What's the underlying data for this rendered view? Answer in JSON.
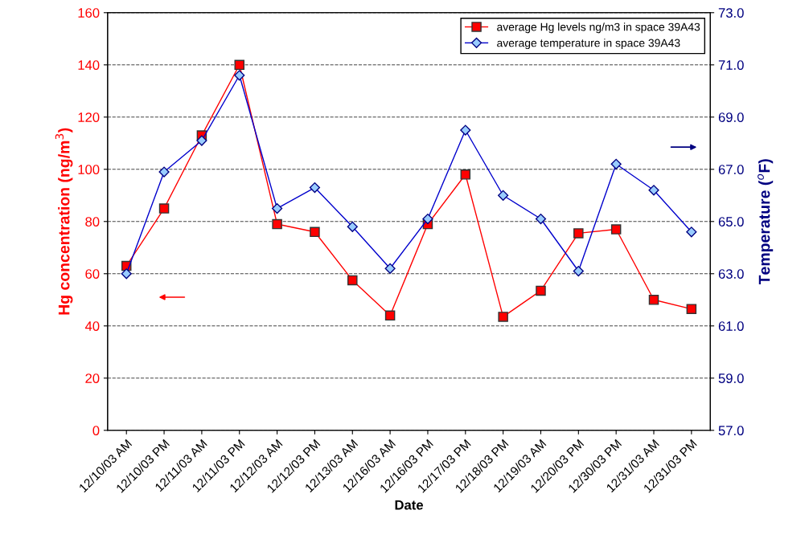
{
  "chart_data": {
    "type": "line",
    "xlabel": "Date",
    "ylabel": "Hg concentration (ng/m$^{3}$)",
    "y2label": "Temperature ($^{o}$F)",
    "categories": [
      "12/10/03 AM",
      "12/10/03 PM",
      "12/11/03 AM",
      "12/11/03 PM",
      "12/12/03 AM",
      "12/12/03 PM",
      "12/13/03 AM",
      "12/16/03 AM",
      "12/16/03 PM",
      "12/17/03 PM",
      "12/18/03 PM",
      "12/19/03 AM",
      "12/20/03 PM",
      "12/30/03 PM",
      "12/31/03 AM",
      "12/31/03 PM"
    ],
    "series": [
      {
        "name": "average Hg levels ng/m3 in space 39A43",
        "color": "#ff0000",
        "marker": "square",
        "values": [
          63,
          85,
          113,
          140,
          79,
          76,
          57.5,
          44,
          79,
          98,
          43.5,
          53.5,
          75.5,
          77,
          50,
          46.5
        ]
      },
      {
        "name": "average temperature in space 39A43",
        "color": "#0000cc",
        "marker": "diamond",
        "axis": "y2",
        "values": [
          63.0,
          66.9,
          68.1,
          70.6,
          65.5,
          66.3,
          64.8,
          63.2,
          65.1,
          68.5,
          66.0,
          65.1,
          63.1,
          67.2,
          66.2,
          64.6
        ]
      }
    ],
    "ylim": [
      0,
      160
    ],
    "yticks": [
      0,
      20,
      40,
      60,
      80,
      100,
      120,
      140,
      160
    ],
    "y2lim": [
      57,
      73
    ],
    "y2ticks": [
      {
        "value": 57,
        "label": "57.0"
      },
      {
        "value": 59,
        "label": "59.0"
      },
      {
        "value": 61,
        "label": "61.0"
      },
      {
        "value": 63,
        "label": "63.0"
      },
      {
        "value": 65,
        "label": "65.0"
      },
      {
        "value": 67,
        "label": "67.0"
      },
      {
        "value": 69,
        "label": "69.0"
      },
      {
        "value": 71,
        "label": "71.0"
      },
      {
        "value": 73,
        "label": "73.0"
      }
    ],
    "grid": "y",
    "legend": "top right",
    "line_style": "solid"
  }
}
